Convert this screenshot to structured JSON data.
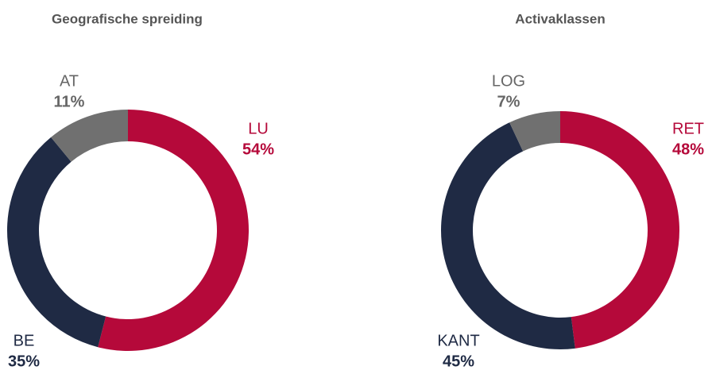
{
  "chart_data": [
    {
      "type": "pie",
      "title": "Geografische spreiding",
      "categories": [
        "LU",
        "BE",
        "AT"
      ],
      "values": [
        54,
        35,
        11
      ],
      "value_labels": [
        "54%",
        "35%",
        "11%"
      ],
      "colors": [
        "#b5093a",
        "#1f2a44",
        "#707070"
      ]
    },
    {
      "type": "pie",
      "title": "Activaklassen",
      "categories": [
        "RET",
        "KANT",
        "LOG"
      ],
      "values": [
        48,
        45,
        7
      ],
      "value_labels": [
        "48%",
        "45%",
        "7%"
      ],
      "colors": [
        "#b5093a",
        "#1f2a44",
        "#707070"
      ]
    }
  ]
}
